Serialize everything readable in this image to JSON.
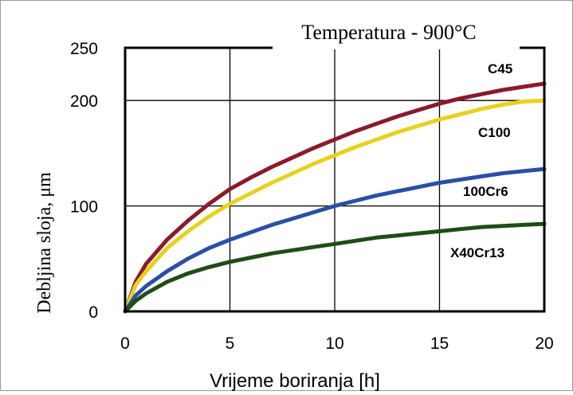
{
  "chart_data": {
    "type": "line",
    "title": "Temperatura - 900°C",
    "xlabel": "Vrijeme boriranja [h]",
    "ylabel": "Debljina sloja, μm",
    "xlim": [
      0,
      20
    ],
    "ylim": [
      0,
      250
    ],
    "x_ticks": [
      "0",
      "5",
      "10",
      "15",
      "20"
    ],
    "y_ticks": [
      "0",
      "100",
      "200",
      "250"
    ],
    "grid": true,
    "series": [
      {
        "name": "C45",
        "color": "#8b1a2b",
        "x": [
          0,
          0.5,
          1,
          2,
          3,
          4,
          5,
          6,
          7,
          8,
          9,
          10,
          11,
          12,
          13,
          14,
          15,
          16,
          17,
          18,
          19,
          20
        ],
        "y": [
          0,
          28,
          45,
          68,
          86,
          102,
          116,
          127,
          137,
          146,
          155,
          163,
          171,
          178,
          185,
          191,
          197,
          202,
          206,
          210,
          213,
          216
        ]
      },
      {
        "name": "C100",
        "color": "#e6d21e",
        "x": [
          0,
          0.5,
          1,
          2,
          3,
          4,
          5,
          6,
          7,
          8,
          9,
          10,
          11,
          12,
          13,
          14,
          15,
          16,
          17,
          18,
          19,
          20
        ],
        "y": [
          0,
          25,
          38,
          60,
          76,
          90,
          102,
          112,
          122,
          131,
          140,
          148,
          156,
          163,
          170,
          176,
          182,
          187,
          192,
          196,
          199,
          200
        ]
      },
      {
        "name": "100Cr6",
        "color": "#2a4fa6",
        "x": [
          0,
          0.5,
          1,
          2,
          3,
          4,
          5,
          6,
          7,
          8,
          9,
          10,
          11,
          12,
          13,
          14,
          15,
          16,
          17,
          18,
          19,
          20
        ],
        "y": [
          0,
          15,
          24,
          38,
          50,
          60,
          68,
          75,
          82,
          88,
          94,
          100,
          105,
          110,
          114,
          118,
          122,
          125,
          128,
          131,
          133,
          135
        ]
      },
      {
        "name": "X40Cr13",
        "color": "#1f4d14",
        "x": [
          0,
          0.5,
          1,
          2,
          3,
          4,
          5,
          6,
          7,
          8,
          9,
          10,
          11,
          12,
          13,
          14,
          15,
          16,
          17,
          18,
          19,
          20
        ],
        "y": [
          0,
          10,
          17,
          28,
          36,
          42,
          47,
          51,
          55,
          58,
          61,
          64,
          67,
          70,
          72,
          74,
          76,
          78,
          80,
          81,
          82,
          83
        ]
      }
    ]
  }
}
